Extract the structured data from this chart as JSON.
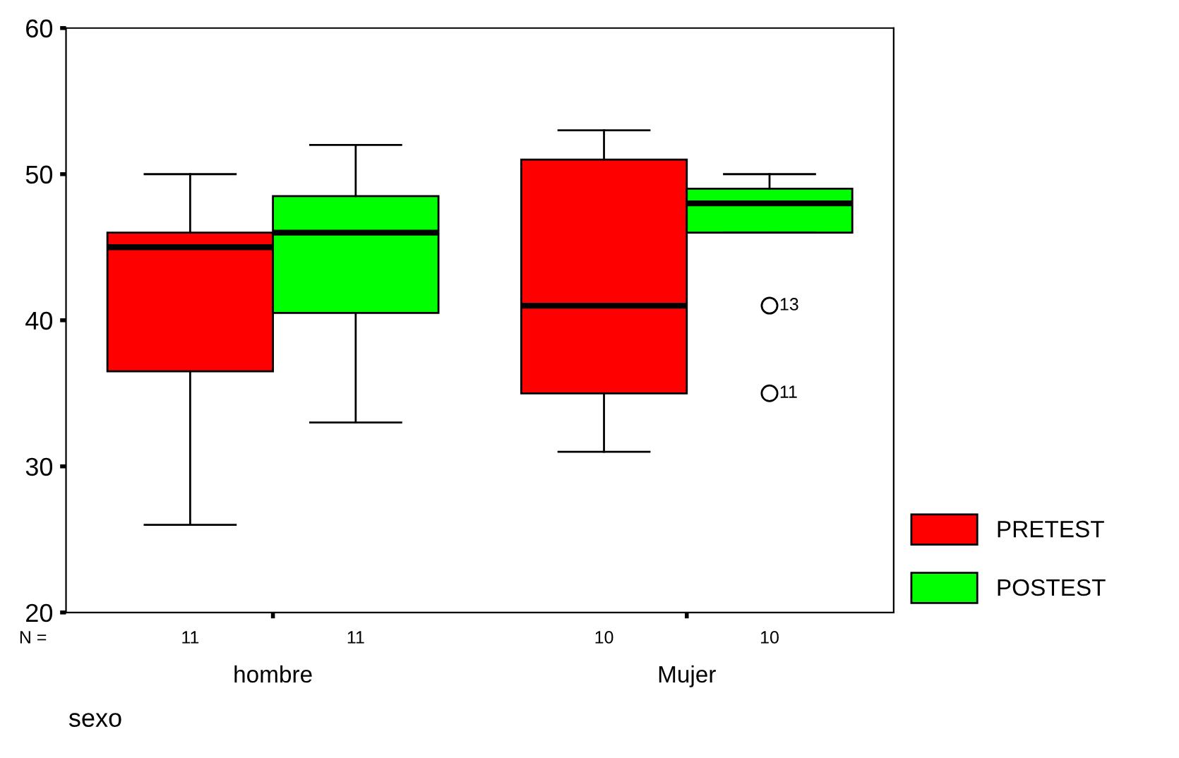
{
  "chart_data": {
    "type": "box",
    "categories": [
      "hombre",
      "Mujer"
    ],
    "xlabel": "sexo",
    "ylim": [
      20,
      60
    ],
    "yticks": [
      20,
      30,
      40,
      50,
      60
    ],
    "grid": false,
    "legend": "bottom right",
    "series": [
      {
        "name": "PRETEST",
        "color": "#ff0000",
        "boxes": [
          {
            "low": 26,
            "q1": 36.5,
            "median": 45,
            "q3": 46,
            "high": 50
          },
          {
            "low": 31,
            "q1": 35,
            "median": 41,
            "q3": 51,
            "high": 53
          }
        ]
      },
      {
        "name": "POSTEST",
        "color": "#00ff00",
        "boxes": [
          {
            "low": 33,
            "q1": 40.5,
            "median": 46,
            "q3": 48.5,
            "high": 52
          },
          {
            "low": 46,
            "q1": 46,
            "median": 48,
            "q3": 49,
            "high": 50,
            "outliers": [
              41,
              35
            ]
          }
        ]
      }
    ],
    "annotations": [
      "N =",
      "11",
      "11",
      "10",
      "10",
      "13",
      "11"
    ]
  }
}
